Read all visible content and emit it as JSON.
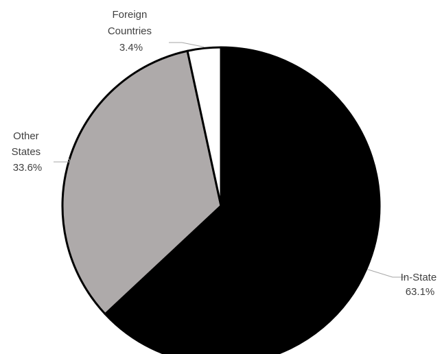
{
  "chart_data": {
    "type": "pie",
    "title": "",
    "slices": [
      {
        "label_lines": [
          "In-State"
        ],
        "value": 63.1,
        "value_label": "63.1%",
        "color": "#000000"
      },
      {
        "label_lines": [
          "Other",
          "States"
        ],
        "value": 33.6,
        "value_label": "33.6%",
        "color": "#aeaaaa"
      },
      {
        "label_lines": [
          "Foreign",
          "Countries"
        ],
        "value": 3.4,
        "value_label": "3.4%",
        "color": "#ffffff"
      }
    ],
    "start_angle_deg": 0,
    "direction": "clockwise",
    "legend": "none"
  }
}
